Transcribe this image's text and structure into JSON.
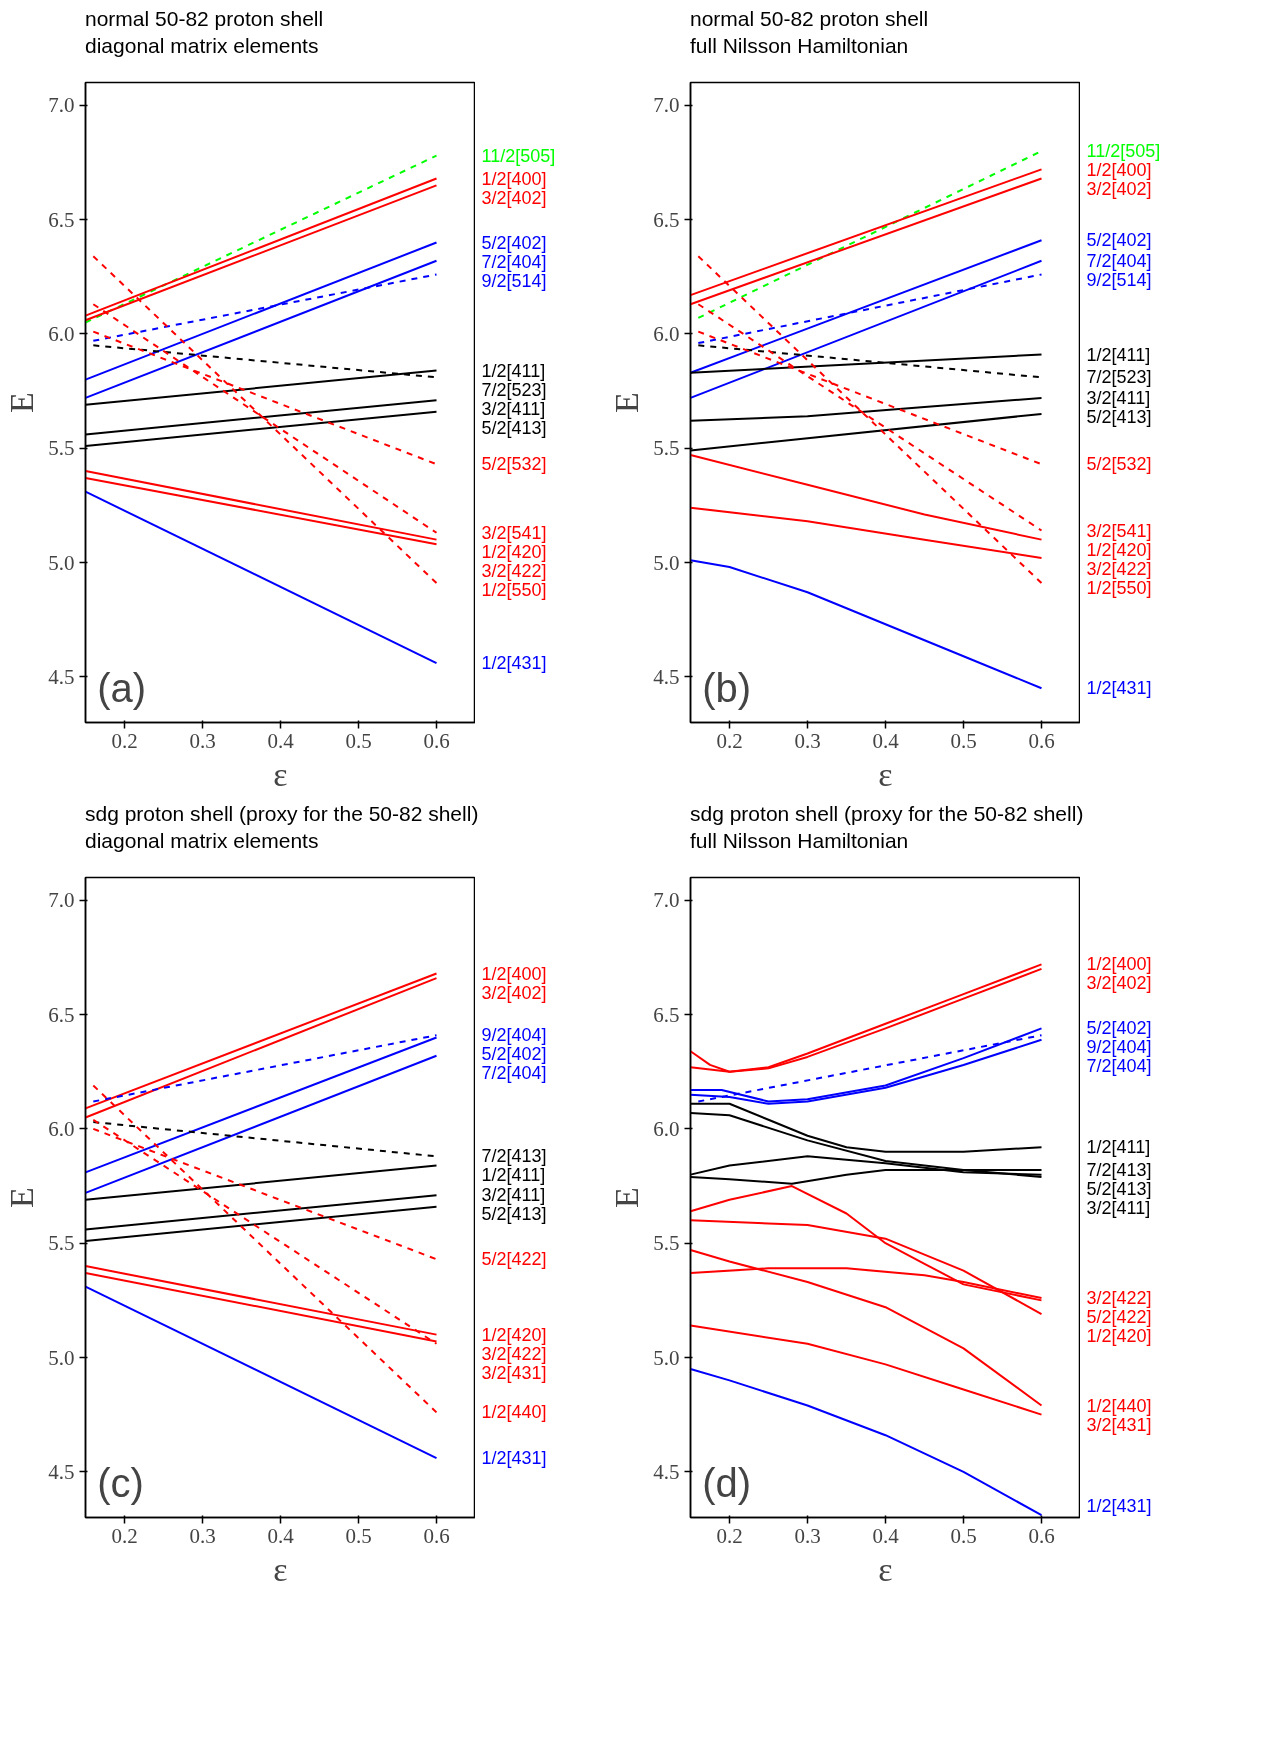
{
  "chart_data": [
    {
      "type": "line",
      "title": "normal 50-82 proton shell",
      "subtitle": "diagonal matrix elements",
      "xlabel": "ε",
      "ylabel": "E",
      "xlim": [
        0.15,
        0.65
      ],
      "ylim": [
        4.3,
        7.1
      ],
      "xticks": [
        0.2,
        0.3,
        0.4,
        0.5,
        0.6
      ],
      "yticks": [
        4.5,
        {
          "value": 5,
          "label": "5.0"
        },
        5.5,
        {
          "value": 6,
          "label": "6.0"
        },
        6.5,
        {
          "value": 7,
          "label": "7.0"
        }
      ],
      "annotations": [
        "(a)"
      ],
      "series": [
        {
          "name": "11/2[505]",
          "color": "#00ff00",
          "line_style": "dashed",
          "x": [
            0.15,
            0.6
          ],
          "values": [
            6.05,
            6.78
          ]
        },
        {
          "name": "1/2[400]",
          "color": "#ff0000",
          "line_style": "solid",
          "x": [
            0.15,
            0.6
          ],
          "values": [
            6.08,
            6.68
          ]
        },
        {
          "name": "3/2[402]",
          "color": "#ff0000",
          "line_style": "solid",
          "x": [
            0.15,
            0.6
          ],
          "values": [
            6.06,
            6.65
          ]
        },
        {
          "name": "5/2[402]",
          "color": "#0000ff",
          "line_style": "solid",
          "x": [
            0.15,
            0.6
          ],
          "values": [
            5.8,
            6.4
          ]
        },
        {
          "name": "7/2[404]",
          "color": "#0000ff",
          "line_style": "solid",
          "x": [
            0.15,
            0.6
          ],
          "values": [
            5.72,
            6.32
          ]
        },
        {
          "name": "9/2[514]",
          "color": "#0000ff",
          "line_style": "dashed",
          "x": [
            0.16,
            0.6
          ],
          "values": [
            5.97,
            6.26
          ]
        },
        {
          "name": "1/2[411]",
          "color": "#000000",
          "line_style": "solid",
          "x": [
            0.15,
            0.6
          ],
          "values": [
            5.69,
            5.84
          ]
        },
        {
          "name": "7/2[523]",
          "color": "#000000",
          "line_style": "dashed",
          "x": [
            0.16,
            0.6
          ],
          "values": [
            5.95,
            5.81
          ]
        },
        {
          "name": "3/2[411]",
          "color": "#000000",
          "line_style": "solid",
          "x": [
            0.15,
            0.6
          ],
          "values": [
            5.56,
            5.71
          ]
        },
        {
          "name": "5/2[413]",
          "color": "#000000",
          "line_style": "solid",
          "x": [
            0.15,
            0.6
          ],
          "values": [
            5.51,
            5.66
          ]
        },
        {
          "name": "5/2[532]",
          "color": "#ff0000",
          "line_style": "dashed",
          "x": [
            0.16,
            0.6
          ],
          "values": [
            6.01,
            5.43
          ]
        },
        {
          "name": "3/2[541]",
          "color": "#ff0000",
          "line_style": "dashed",
          "x": [
            0.16,
            0.6
          ],
          "values": [
            6.13,
            5.13
          ]
        },
        {
          "name": "1/2[420]",
          "color": "#ff0000",
          "line_style": "solid",
          "x": [
            0.15,
            0.6
          ],
          "values": [
            5.4,
            5.1
          ]
        },
        {
          "name": "3/2[422]",
          "color": "#ff0000",
          "line_style": "solid",
          "x": [
            0.15,
            0.6
          ],
          "values": [
            5.37,
            5.08
          ]
        },
        {
          "name": "1/2[550]",
          "color": "#ff0000",
          "line_style": "dashed",
          "x": [
            0.16,
            0.6
          ],
          "values": [
            6.34,
            4.91
          ]
        },
        {
          "name": "1/2[431]",
          "color": "#0000ff",
          "line_style": "solid",
          "x": [
            0.15,
            0.6
          ],
          "values": [
            5.31,
            4.56
          ]
        }
      ]
    },
    {
      "type": "line",
      "title": "normal 50-82 proton shell",
      "subtitle": "full Nilsson Hamiltonian",
      "xlabel": "ε",
      "ylabel": "E",
      "xlim": [
        0.15,
        0.65
      ],
      "ylim": [
        4.3,
        7.1
      ],
      "xticks": [
        0.2,
        0.3,
        0.4,
        0.5,
        0.6
      ],
      "yticks": [
        4.5,
        {
          "value": 5,
          "label": "5.0"
        },
        5.5,
        {
          "value": 6,
          "label": "6.0"
        },
        6.5,
        {
          "value": 7,
          "label": "7.0"
        }
      ],
      "annotations": [
        "(b)"
      ],
      "series": [
        {
          "name": "11/2[505]",
          "color": "#00ff00",
          "line_style": "dashed",
          "x": [
            0.16,
            0.6
          ],
          "values": [
            6.07,
            6.8
          ]
        },
        {
          "name": "1/2[400]",
          "color": "#ff0000",
          "line_style": "solid",
          "x": [
            0.15,
            0.6
          ],
          "values": [
            6.17,
            6.72
          ]
        },
        {
          "name": "3/2[402]",
          "color": "#ff0000",
          "line_style": "solid",
          "x": [
            0.15,
            0.6
          ],
          "values": [
            6.13,
            6.68
          ]
        },
        {
          "name": "5/2[402]",
          "color": "#0000ff",
          "line_style": "solid",
          "x": [
            0.15,
            0.6
          ],
          "values": [
            5.83,
            6.41
          ]
        },
        {
          "name": "7/2[404]",
          "color": "#0000ff",
          "line_style": "solid",
          "x": [
            0.15,
            0.6
          ],
          "values": [
            5.72,
            6.32
          ]
        },
        {
          "name": "9/2[514]",
          "color": "#0000ff",
          "line_style": "dashed",
          "x": [
            0.16,
            0.6
          ],
          "values": [
            5.96,
            6.26
          ]
        },
        {
          "name": "1/2[411]",
          "color": "#000000",
          "line_style": "solid",
          "x": [
            0.15,
            0.6
          ],
          "values": [
            5.83,
            5.91
          ]
        },
        {
          "name": "7/2[523]",
          "color": "#000000",
          "line_style": "dashed",
          "x": [
            0.16,
            0.6
          ],
          "values": [
            5.95,
            5.81
          ]
        },
        {
          "name": "3/2[411]",
          "color": "#000000",
          "line_style": "solid",
          "x": [
            0.15,
            0.3,
            0.45,
            0.6
          ],
          "values": [
            5.62,
            5.64,
            5.68,
            5.72
          ]
        },
        {
          "name": "5/2[413]",
          "color": "#000000",
          "line_style": "solid",
          "x": [
            0.15,
            0.6
          ],
          "values": [
            5.49,
            5.65
          ]
        },
        {
          "name": "5/2[532]",
          "color": "#ff0000",
          "line_style": "dashed",
          "x": [
            0.16,
            0.6
          ],
          "values": [
            6.01,
            5.43
          ]
        },
        {
          "name": "3/2[541]",
          "color": "#ff0000",
          "line_style": "dashed",
          "x": [
            0.16,
            0.6
          ],
          "values": [
            6.13,
            5.14
          ]
        },
        {
          "name": "1/2[420]",
          "color": "#ff0000",
          "line_style": "solid",
          "x": [
            0.15,
            0.3,
            0.45,
            0.6
          ],
          "values": [
            5.47,
            5.34,
            5.21,
            5.1
          ]
        },
        {
          "name": "3/2[422]",
          "color": "#ff0000",
          "line_style": "solid",
          "x": [
            0.15,
            0.3,
            0.45,
            0.6
          ],
          "values": [
            5.24,
            5.18,
            5.1,
            5.02
          ]
        },
        {
          "name": "1/2[550]",
          "color": "#ff0000",
          "line_style": "dashed",
          "x": [
            0.16,
            0.6
          ],
          "values": [
            6.34,
            4.91
          ]
        },
        {
          "name": "1/2[431]",
          "color": "#0000ff",
          "line_style": "solid",
          "x": [
            0.15,
            0.2,
            0.3,
            0.4,
            0.5,
            0.6
          ],
          "values": [
            5.01,
            4.98,
            4.87,
            4.73,
            4.59,
            4.45
          ]
        }
      ]
    },
    {
      "type": "line",
      "title": "sdg proton shell (proxy for the 50-82 shell)",
      "subtitle": "diagonal matrix elements",
      "xlabel": "ε",
      "ylabel": "E",
      "xlim": [
        0.15,
        0.65
      ],
      "ylim": [
        4.3,
        7.1
      ],
      "xticks": [
        0.2,
        0.3,
        0.4,
        0.5,
        0.6
      ],
      "yticks": [
        4.5,
        {
          "value": 5,
          "label": "5.0"
        },
        5.5,
        {
          "value": 6,
          "label": "6.0"
        },
        6.5,
        {
          "value": 7,
          "label": "7.0"
        }
      ],
      "annotations": [
        "(c)"
      ],
      "series": [
        {
          "name": "1/2[400]",
          "color": "#ff0000",
          "line_style": "solid",
          "x": [
            0.15,
            0.6
          ],
          "values": [
            6.09,
            6.68
          ]
        },
        {
          "name": "3/2[402]",
          "color": "#ff0000",
          "line_style": "solid",
          "x": [
            0.15,
            0.6
          ],
          "values": [
            6.05,
            6.66
          ]
        },
        {
          "name": "9/2[404]",
          "color": "#0000ff",
          "line_style": "dashed",
          "x": [
            0.16,
            0.6
          ],
          "values": [
            6.12,
            6.41
          ]
        },
        {
          "name": "5/2[402]",
          "color": "#0000ff",
          "line_style": "solid",
          "x": [
            0.15,
            0.6
          ],
          "values": [
            5.81,
            6.4
          ]
        },
        {
          "name": "7/2[404]",
          "color": "#0000ff",
          "line_style": "solid",
          "x": [
            0.15,
            0.6
          ],
          "values": [
            5.72,
            6.32
          ]
        },
        {
          "name": "7/2[413]",
          "color": "#000000",
          "line_style": "dashed",
          "x": [
            0.16,
            0.6
          ],
          "values": [
            6.03,
            5.88
          ]
        },
        {
          "name": "1/2[411]",
          "color": "#000000",
          "line_style": "solid",
          "x": [
            0.15,
            0.6
          ],
          "values": [
            5.69,
            5.84
          ]
        },
        {
          "name": "3/2[411]",
          "color": "#000000",
          "line_style": "solid",
          "x": [
            0.15,
            0.6
          ],
          "values": [
            5.56,
            5.71
          ]
        },
        {
          "name": "5/2[413]",
          "color": "#000000",
          "line_style": "solid",
          "x": [
            0.15,
            0.6
          ],
          "values": [
            5.51,
            5.66
          ]
        },
        {
          "name": "5/2[422]",
          "color": "#ff0000",
          "line_style": "dashed",
          "x": [
            0.16,
            0.6
          ],
          "values": [
            6.0,
            5.43
          ]
        },
        {
          "name": "1/2[420]",
          "color": "#ff0000",
          "line_style": "solid",
          "x": [
            0.15,
            0.6
          ],
          "values": [
            5.4,
            5.1
          ]
        },
        {
          "name": "3/2[422]",
          "color": "#ff0000",
          "line_style": "solid",
          "x": [
            0.15,
            0.6
          ],
          "values": [
            5.37,
            5.07
          ]
        },
        {
          "name": "3/2[431]",
          "color": "#ff0000",
          "line_style": "dashed",
          "x": [
            0.16,
            0.6
          ],
          "values": [
            6.04,
            5.06
          ]
        },
        {
          "name": "1/2[440]",
          "color": "#ff0000",
          "line_style": "dashed",
          "x": [
            0.16,
            0.6
          ],
          "values": [
            6.19,
            4.76
          ]
        },
        {
          "name": "1/2[431]",
          "color": "#0000ff",
          "line_style": "solid",
          "x": [
            0.15,
            0.6
          ],
          "values": [
            5.31,
            4.56
          ]
        }
      ]
    },
    {
      "type": "line",
      "title": "sdg proton shell (proxy for the 50-82 shell)",
      "subtitle": "full Nilsson Hamiltonian",
      "xlabel": "ε",
      "ylabel": "E",
      "xlim": [
        0.15,
        0.65
      ],
      "ylim": [
        4.3,
        7.1
      ],
      "xticks": [
        0.2,
        0.3,
        0.4,
        0.5,
        0.6
      ],
      "yticks": [
        4.5,
        {
          "value": 5,
          "label": "5.0"
        },
        5.5,
        {
          "value": 6,
          "label": "6.0"
        },
        6.5,
        {
          "value": 7,
          "label": "7.0"
        }
      ],
      "annotations": [
        "(d)"
      ],
      "series": [
        {
          "name": "1/2[400]",
          "color": "#ff0000",
          "line_style": "solid",
          "x": [
            0.15,
            0.175,
            0.2,
            0.25,
            0.3,
            0.4,
            0.5,
            0.6
          ],
          "values": [
            6.34,
            6.28,
            6.25,
            6.27,
            6.33,
            6.46,
            6.59,
            6.72
          ]
        },
        {
          "name": "3/2[402]",
          "color": "#ff0000",
          "line_style": "solid",
          "x": [
            0.15,
            0.2,
            0.25,
            0.3,
            0.4,
            0.5,
            0.6
          ],
          "values": [
            6.27,
            6.25,
            6.265,
            6.315,
            6.44,
            6.57,
            6.7
          ]
        },
        {
          "name": "5/2[402]",
          "color": "#0000ff",
          "line_style": "solid",
          "x": [
            0.15,
            0.19,
            0.25,
            0.3,
            0.4,
            0.5,
            0.6
          ],
          "values": [
            6.17,
            6.17,
            6.12,
            6.13,
            6.19,
            6.31,
            6.44
          ]
        },
        {
          "name": "9/2[404]",
          "color": "#0000ff",
          "line_style": "dashed",
          "x": [
            0.16,
            0.6
          ],
          "values": [
            6.12,
            6.41
          ]
        },
        {
          "name": "7/2[404]",
          "color": "#0000ff",
          "line_style": "solid",
          "x": [
            0.15,
            0.2,
            0.25,
            0.3,
            0.4,
            0.5,
            0.6
          ],
          "values": [
            6.15,
            6.14,
            6.11,
            6.12,
            6.18,
            6.28,
            6.39
          ]
        },
        {
          "name": "1/2[411]",
          "color": "#000000",
          "line_style": "solid",
          "x": [
            0.15,
            0.2,
            0.25,
            0.3,
            0.35,
            0.4,
            0.5,
            0.6
          ],
          "values": [
            6.11,
            6.11,
            6.04,
            5.97,
            5.92,
            5.9,
            5.9,
            5.92
          ]
        },
        {
          "name": "7/2[413]",
          "color": "#000000",
          "line_style": "solid",
          "x": [
            0.15,
            0.2,
            0.3,
            0.4,
            0.5,
            0.6
          ],
          "values": [
            6.07,
            6.06,
            5.95,
            5.86,
            5.82,
            5.82
          ]
        },
        {
          "name": "5/2[413]",
          "color": "#000000",
          "line_style": "solid",
          "x": [
            0.15,
            0.2,
            0.3,
            0.4,
            0.5,
            0.6
          ],
          "values": [
            5.8,
            5.84,
            5.88,
            5.85,
            5.81,
            5.8
          ]
        },
        {
          "name": "3/2[411]",
          "color": "#000000",
          "line_style": "solid",
          "x": [
            0.15,
            0.2,
            0.28,
            0.35,
            0.4,
            0.5,
            0.6
          ],
          "values": [
            5.79,
            5.78,
            5.76,
            5.8,
            5.82,
            5.82,
            5.79
          ]
        },
        {
          "name": "3/2[422]",
          "color": "#ff0000",
          "line_style": "solid",
          "x": [
            0.15,
            0.25,
            0.35,
            0.45,
            0.5,
            0.6
          ],
          "values": [
            5.37,
            5.39,
            5.39,
            5.36,
            5.33,
            5.26
          ]
        },
        {
          "name": "5/2[422]",
          "color": "#ff0000",
          "line_style": "solid",
          "x": [
            0.15,
            0.2,
            0.28,
            0.35,
            0.4,
            0.45,
            0.5,
            0.6
          ],
          "values": [
            5.64,
            5.69,
            5.75,
            5.63,
            5.5,
            5.41,
            5.32,
            5.25
          ]
        },
        {
          "name": "1/2[420]",
          "color": "#ff0000",
          "line_style": "solid",
          "x": [
            0.15,
            0.3,
            0.4,
            0.5,
            0.6
          ],
          "values": [
            5.6,
            5.58,
            5.52,
            5.38,
            5.19
          ]
        },
        {
          "name": "1/2[440]",
          "color": "#ff0000",
          "line_style": "solid",
          "x": [
            0.15,
            0.2,
            0.3,
            0.4,
            0.5,
            0.6
          ],
          "values": [
            5.47,
            5.42,
            5.33,
            5.22,
            5.04,
            4.79
          ]
        },
        {
          "name": "3/2[431]",
          "color": "#ff0000",
          "line_style": "solid",
          "x": [
            0.15,
            0.3,
            0.4,
            0.5,
            0.6
          ],
          "values": [
            5.14,
            5.06,
            4.97,
            4.86,
            4.75
          ]
        },
        {
          "name": "1/2[431]",
          "color": "#0000ff",
          "line_style": "solid",
          "x": [
            0.15,
            0.2,
            0.3,
            0.4,
            0.5,
            0.6
          ],
          "values": [
            4.95,
            4.9,
            4.79,
            4.66,
            4.5,
            4.31
          ]
        }
      ]
    }
  ]
}
